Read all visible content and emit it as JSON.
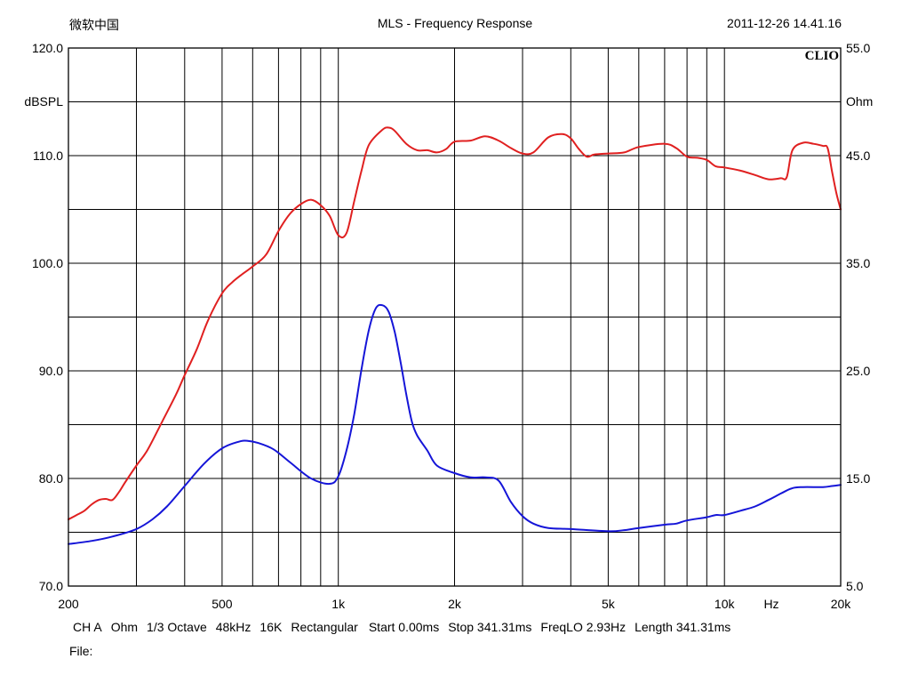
{
  "header": {
    "left": "微软中国",
    "title": "MLS - Frequency Response",
    "datetime": "2011-12-26 14.41.16"
  },
  "brand": "CLIO",
  "footer": {
    "settings": [
      "CH A",
      "Ohm",
      "1/3 Octave",
      "48kHz",
      "16K",
      "Rectangular",
      "Start 0.00ms",
      "Stop 341.31ms",
      "FreqLO 2.93Hz",
      "Length 341.31ms"
    ],
    "file_label": "File:"
  },
  "colors": {
    "spl": "#e02020",
    "impedance": "#1515d8",
    "grid": "#000000"
  },
  "chart_data": {
    "type": "line",
    "title": "MLS - Frequency Response",
    "xscale": "log",
    "xlim": [
      200,
      20000
    ],
    "ylim_left": [
      70,
      120
    ],
    "ylim_right": [
      5,
      55
    ],
    "ylabel_left": "dBSPL",
    "ylabel_right": "Ohm",
    "xunit_label": "Hz",
    "grid": true,
    "x_ticks": [
      {
        "value": 200,
        "label": "200"
      },
      {
        "value": 500,
        "label": "500"
      },
      {
        "value": 1000,
        "label": "1k"
      },
      {
        "value": 2000,
        "label": "2k"
      },
      {
        "value": 5000,
        "label": "5k"
      },
      {
        "value": 10000,
        "label": "10k"
      },
      {
        "value": 20000,
        "label": "20k"
      }
    ],
    "y_ticks_left": [
      "120.0",
      "110.0",
      "100.0",
      "90.0",
      "80.0",
      "70.0"
    ],
    "y_ticks_right": [
      "55.0",
      "45.0",
      "35.0",
      "25.0",
      "15.0",
      "5.0"
    ],
    "series": [
      {
        "axis": "left",
        "color": "#e02020",
        "x": [
          200,
          210,
          220,
          230,
          240,
          250,
          260,
          270,
          280,
          300,
          320,
          350,
          380,
          400,
          430,
          460,
          500,
          530,
          560,
          600,
          650,
          700,
          750,
          800,
          850,
          900,
          950,
          1000,
          1050,
          1100,
          1150,
          1200,
          1300,
          1350,
          1400,
          1500,
          1600,
          1700,
          1800,
          1900,
          2000,
          2200,
          2400,
          2600,
          2800,
          3000,
          3200,
          3500,
          3800,
          4000,
          4200,
          4400,
          4600,
          5000,
          5500,
          6000,
          7000,
          7500,
          8000,
          8500,
          9000,
          9500,
          10000,
          11000,
          12000,
          13000,
          14000,
          14500,
          15000,
          16000,
          17000,
          18000,
          18500,
          19000,
          19500,
          20000
        ],
        "y": [
          76.2,
          76.6,
          77.0,
          77.6,
          78.0,
          78.1,
          78.0,
          78.7,
          79.6,
          81.2,
          82.6,
          85.3,
          87.8,
          89.6,
          92.0,
          94.7,
          97.2,
          98.2,
          98.9,
          99.7,
          100.8,
          103.0,
          104.6,
          105.5,
          105.9,
          105.4,
          104.4,
          102.6,
          102.8,
          105.8,
          108.7,
          111.0,
          112.4,
          112.6,
          112.3,
          111.1,
          110.5,
          110.5,
          110.3,
          110.6,
          111.3,
          111.4,
          111.8,
          111.4,
          110.7,
          110.2,
          110.3,
          111.7,
          112.0,
          111.6,
          110.6,
          109.9,
          110.1,
          110.2,
          110.3,
          110.8,
          111.1,
          110.7,
          109.9,
          109.8,
          109.6,
          109.0,
          108.9,
          108.6,
          108.2,
          107.8,
          107.9,
          108.0,
          110.5,
          111.2,
          111.1,
          110.9,
          110.7,
          108.5,
          106.5,
          105.0
        ]
      },
      {
        "axis": "right",
        "color": "#1515d8",
        "x": [
          200,
          230,
          260,
          300,
          330,
          360,
          400,
          450,
          500,
          550,
          580,
          620,
          680,
          750,
          850,
          950,
          1000,
          1050,
          1100,
          1150,
          1200,
          1250,
          1300,
          1350,
          1400,
          1450,
          1500,
          1550,
          1600,
          1700,
          1800,
          2000,
          2200,
          2400,
          2600,
          2800,
          3000,
          3200,
          3500,
          4000,
          5000,
          5500,
          6000,
          7000,
          7500,
          8000,
          9000,
          9500,
          10000,
          11000,
          12000,
          13000,
          14000,
          15000,
          16000,
          18000,
          19000,
          20000
        ],
        "y": [
          8.9,
          9.2,
          9.6,
          10.3,
          11.2,
          12.4,
          14.3,
          16.4,
          17.8,
          18.4,
          18.5,
          18.3,
          17.7,
          16.5,
          15.0,
          14.5,
          15.2,
          17.6,
          21.0,
          25.3,
          28.8,
          30.8,
          31.1,
          30.5,
          28.6,
          25.8,
          22.8,
          20.3,
          19.0,
          17.6,
          16.2,
          15.5,
          15.1,
          15.1,
          14.8,
          12.8,
          11.5,
          10.8,
          10.4,
          10.3,
          10.1,
          10.2,
          10.4,
          10.7,
          10.8,
          11.1,
          11.4,
          11.6,
          11.6,
          12.0,
          12.4,
          13.0,
          13.6,
          14.1,
          14.2,
          14.2,
          14.3,
          14.4
        ]
      }
    ]
  }
}
